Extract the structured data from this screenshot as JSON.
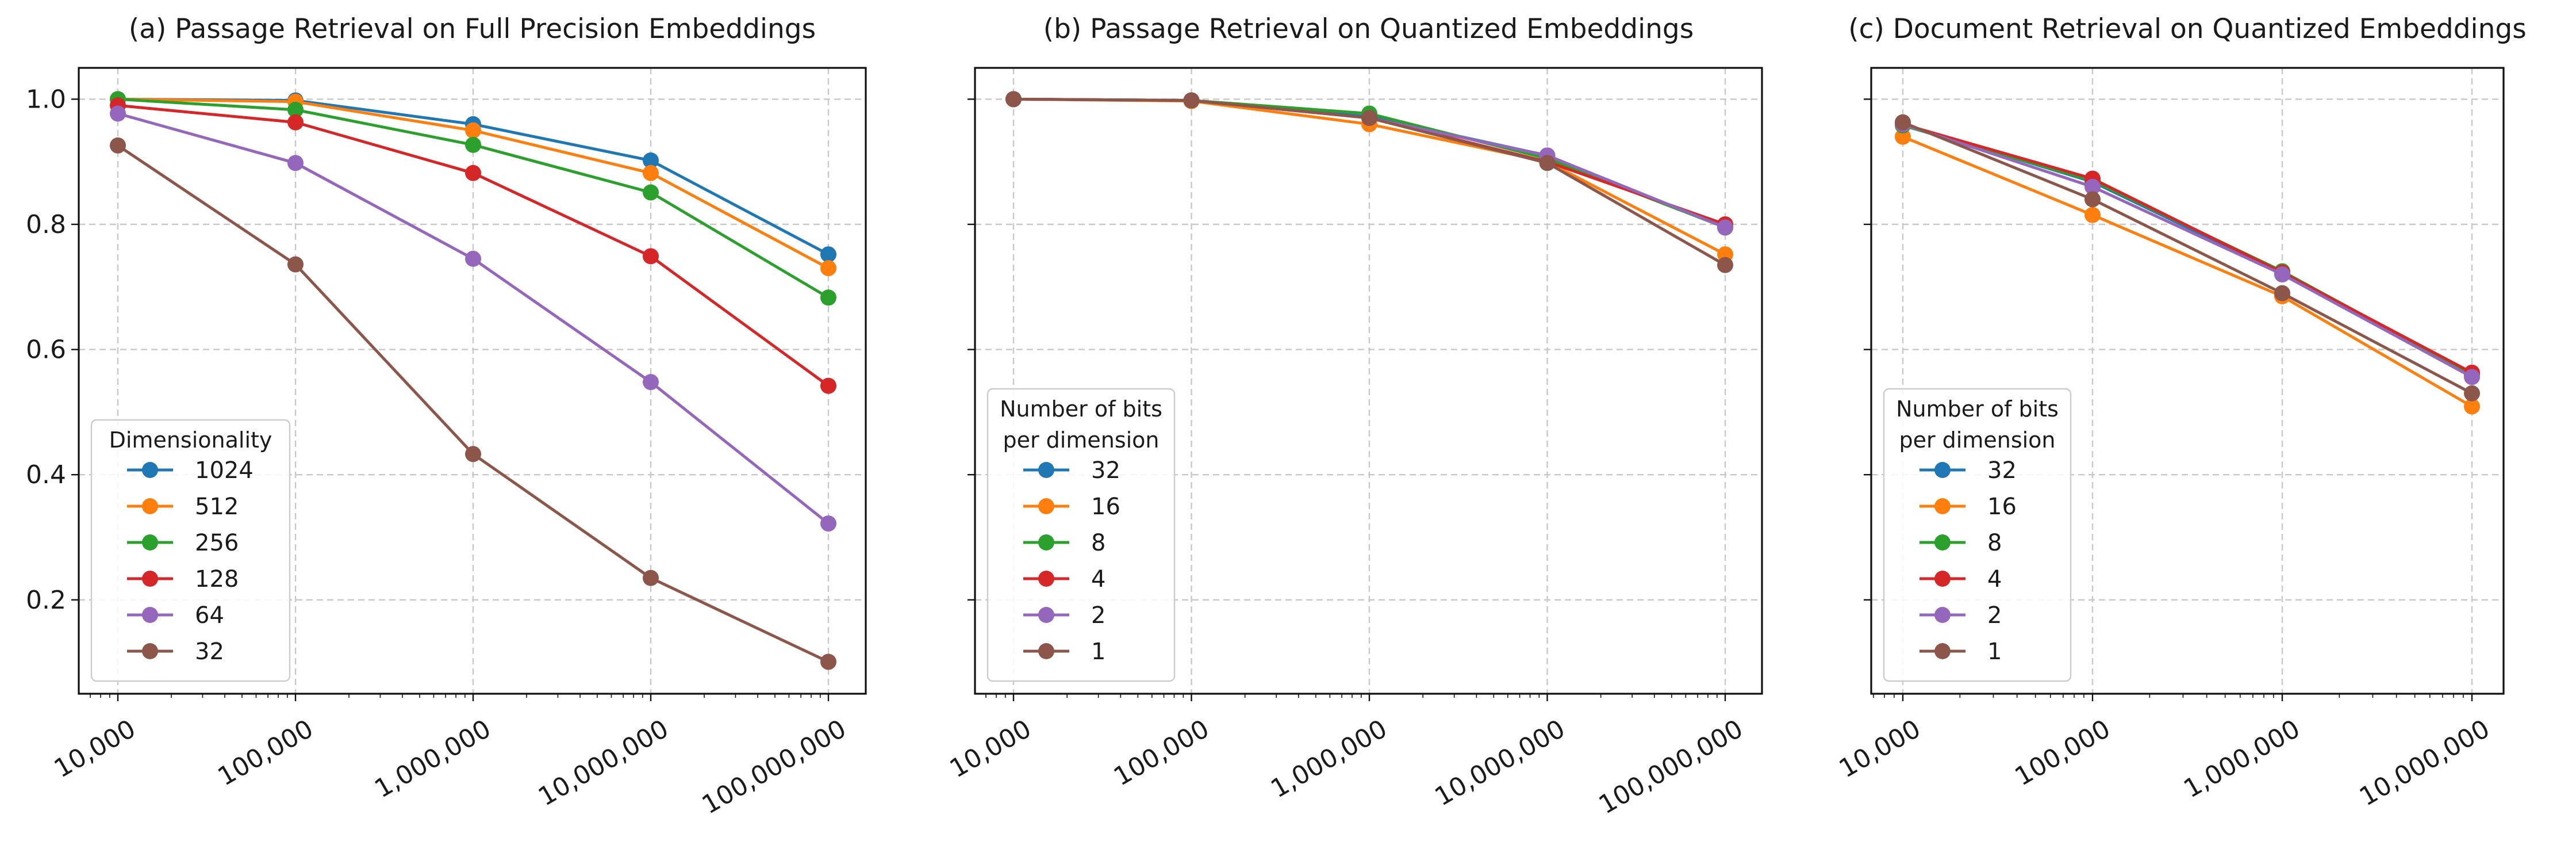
{
  "chart_data": [
    {
      "type": "line",
      "title": "(a) Passage Retrieval on Full Precision Embeddings",
      "xscale": "log",
      "x": [
        10000,
        100000,
        1000000,
        10000000,
        100000000
      ],
      "x_tick_labels": [
        "10,000",
        "100,000",
        "1,000,000",
        "10,000,000",
        "100,000,000"
      ],
      "ylim": [
        0.05,
        1.05
      ],
      "y_ticks": [
        0.2,
        0.4,
        0.6,
        0.8,
        1.0
      ],
      "y_tick_labels": [
        "0.2",
        "0.4",
        "0.6",
        "0.8",
        "1.0"
      ],
      "grid": true,
      "legend_title": [
        "Dimensionality"
      ],
      "legend_placement": "lower-left",
      "series": [
        {
          "name": "1024",
          "color": "#1f77b4",
          "values": [
            1.0,
            0.998,
            0.96,
            0.902,
            0.752
          ]
        },
        {
          "name": "512",
          "color": "#ff7f0e",
          "values": [
            1.0,
            0.996,
            0.95,
            0.882,
            0.73
          ]
        },
        {
          "name": "256",
          "color": "#2ca02c",
          "values": [
            1.0,
            0.983,
            0.927,
            0.851,
            0.683
          ]
        },
        {
          "name": "128",
          "color": "#d62728",
          "values": [
            0.99,
            0.963,
            0.882,
            0.749,
            0.542
          ]
        },
        {
          "name": "64",
          "color": "#9467bd",
          "values": [
            0.977,
            0.898,
            0.745,
            0.548,
            0.322
          ]
        },
        {
          "name": "32",
          "color": "#8c564b",
          "values": [
            0.926,
            0.736,
            0.433,
            0.235,
            0.101
          ]
        }
      ]
    },
    {
      "type": "line",
      "title": "(b) Passage Retrieval on Quantized Embeddings",
      "xscale": "log",
      "x": [
        10000,
        100000,
        1000000,
        10000000,
        100000000
      ],
      "x_tick_labels": [
        "10,000",
        "100,000",
        "1,000,000",
        "10,000,000",
        "100,000,000"
      ],
      "ylim": [
        0.05,
        1.05
      ],
      "y_ticks": [
        0.2,
        0.4,
        0.6,
        0.8,
        1.0
      ],
      "y_tick_labels": [],
      "grid": true,
      "legend_title": [
        "Number of bits",
        "per dimension"
      ],
      "legend_placement": "lower-left",
      "series": [
        {
          "name": "32",
          "color": "#1f77b4",
          "values": [
            1.0,
            0.998,
            0.972,
            0.91,
            0.795
          ]
        },
        {
          "name": "16",
          "color": "#ff7f0e",
          "values": [
            1.0,
            0.997,
            0.96,
            0.9,
            0.752
          ]
        },
        {
          "name": "8",
          "color": "#2ca02c",
          "values": [
            1.0,
            0.998,
            0.977,
            0.905,
            0.795
          ]
        },
        {
          "name": "4",
          "color": "#d62728",
          "values": [
            1.0,
            0.998,
            0.97,
            0.9,
            0.8
          ]
        },
        {
          "name": "2",
          "color": "#9467bd",
          "values": [
            1.0,
            0.998,
            0.97,
            0.91,
            0.795
          ]
        },
        {
          "name": "1",
          "color": "#8c564b",
          "values": [
            1.0,
            0.998,
            0.97,
            0.898,
            0.735
          ]
        }
      ]
    },
    {
      "type": "line",
      "title": "(c) Document Retrieval on Quantized Embeddings",
      "xscale": "log",
      "x": [
        10000,
        100000,
        1000000,
        10000000
      ],
      "x_tick_labels": [
        "10,000",
        "100,000",
        "1,000,000",
        "10,000,000"
      ],
      "ylim": [
        0.05,
        1.05
      ],
      "y_ticks": [
        0.2,
        0.4,
        0.6,
        0.8,
        1.0
      ],
      "y_tick_labels": [],
      "grid": true,
      "legend_title": [
        "Number of bits",
        "per dimension"
      ],
      "legend_placement": "lower-left",
      "series": [
        {
          "name": "32",
          "color": "#1f77b4",
          "values": [
            0.96,
            0.868,
            0.722,
            0.56
          ]
        },
        {
          "name": "16",
          "color": "#ff7f0e",
          "values": [
            0.94,
            0.815,
            0.685,
            0.509
          ]
        },
        {
          "name": "8",
          "color": "#2ca02c",
          "values": [
            0.958,
            0.87,
            0.725,
            0.56
          ]
        },
        {
          "name": "4",
          "color": "#d62728",
          "values": [
            0.96,
            0.873,
            0.723,
            0.563
          ]
        },
        {
          "name": "2",
          "color": "#9467bd",
          "values": [
            0.96,
            0.86,
            0.72,
            0.556
          ]
        },
        {
          "name": "1",
          "color": "#8c564b",
          "values": [
            0.963,
            0.84,
            0.69,
            0.53
          ]
        }
      ]
    }
  ]
}
